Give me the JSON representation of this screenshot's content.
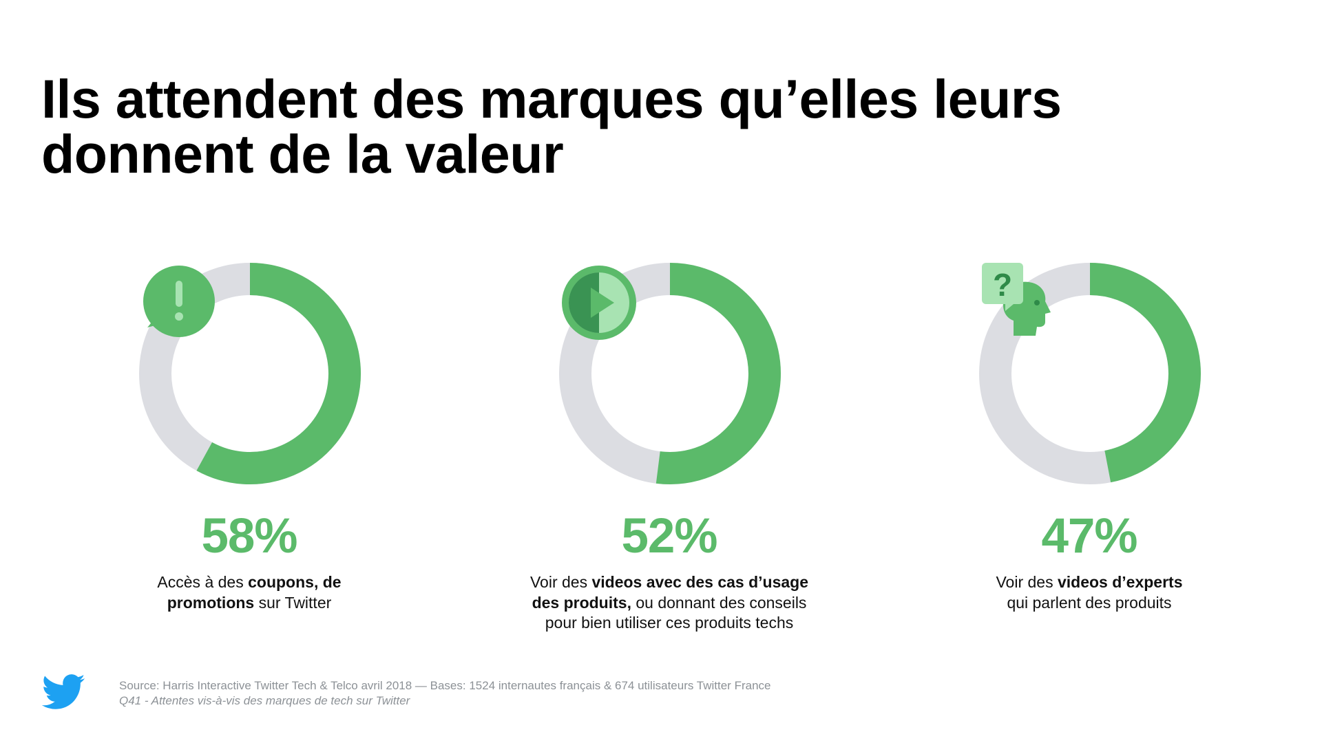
{
  "title": {
    "line1": "Ils attendent des marques qu’elles leurs",
    "line2": "donnent de la valeur"
  },
  "colors": {
    "accent": "#5bba6a",
    "track": "#dcdde2",
    "icon_dark": "#2e8a48",
    "icon_light": "#a8e3b2",
    "footnote": "#8c9196",
    "twitter_blue": "#1da1f2"
  },
  "chart_data": {
    "type": "donut",
    "items": [
      {
        "value": 58,
        "value_label": "58%",
        "icon": "alert-speech-bubble-icon",
        "desc_lines": [
          [
            {
              "t": "Accès à des ",
              "b": false
            },
            {
              "t": "coupons, de",
              "b": true
            }
          ],
          [
            {
              "t": "promotions",
              "b": true
            },
            {
              "t": " sur Twitter",
              "b": false
            }
          ]
        ]
      },
      {
        "value": 52,
        "value_label": "52%",
        "icon": "play-button-icon",
        "desc_lines": [
          [
            {
              "t": "Voir des ",
              "b": false
            },
            {
              "t": "videos avec des cas d’usage",
              "b": true
            }
          ],
          [
            {
              "t": "des produits,",
              "b": true
            },
            {
              "t": " ou donnant des conseils",
              "b": false
            }
          ],
          [
            {
              "t": "pour bien utiliser ces produits techs",
              "b": false
            }
          ]
        ]
      },
      {
        "value": 47,
        "value_label": "47%",
        "icon": "expert-question-head-icon",
        "desc_lines": [
          [
            {
              "t": "Voir des ",
              "b": false
            },
            {
              "t": "videos d’experts",
              "b": true
            }
          ],
          [
            {
              "t": "qui parlent des produits",
              "b": false
            }
          ]
        ]
      }
    ]
  },
  "footer": {
    "logo_icon": "twitter-bird-icon",
    "source_line": "Source: Harris Interactive Twitter Tech & Telco avril 2018 — Bases: 1524 internautes français & 674 utilisateurs Twitter France",
    "question_line": "Q41 - Attentes vis-à-vis des marques de tech sur Twitter"
  }
}
